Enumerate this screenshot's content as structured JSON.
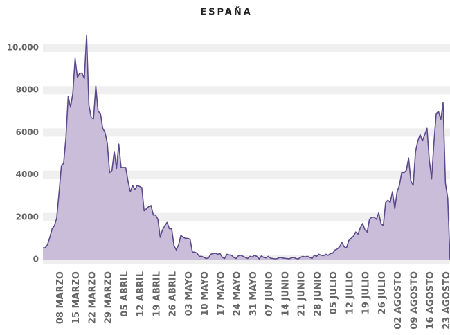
{
  "chart_data": {
    "type": "area",
    "title": "ESPAÑA",
    "categories": [
      null,
      null,
      null,
      null,
      null,
      null,
      null,
      "08 MARZO",
      null,
      null,
      null,
      null,
      null,
      null,
      "15 MARZO",
      null,
      null,
      null,
      null,
      null,
      null,
      "22 MARZO",
      null,
      null,
      null,
      null,
      null,
      null,
      "29 MARZO",
      null,
      null,
      null,
      null,
      null,
      null,
      "05 ABRIL",
      null,
      null,
      null,
      null,
      null,
      null,
      "12 ABRIL",
      null,
      null,
      null,
      null,
      null,
      null,
      "19 ABRIL",
      null,
      null,
      null,
      null,
      null,
      null,
      "26 ABRIL",
      null,
      null,
      null,
      null,
      null,
      null,
      "03 MAYO",
      null,
      null,
      null,
      null,
      null,
      null,
      "10 MAYO",
      null,
      null,
      null,
      null,
      null,
      null,
      "17 MAYO",
      null,
      null,
      null,
      null,
      null,
      null,
      "24 MAYO",
      null,
      null,
      null,
      null,
      null,
      null,
      "31 MAYO",
      null,
      null,
      null,
      null,
      null,
      null,
      "07 JUNIO",
      null,
      null,
      null,
      null,
      null,
      null,
      "14 JUNIO",
      null,
      null,
      null,
      null,
      null,
      null,
      "21 JUNIO",
      null,
      null,
      null,
      null,
      null,
      null,
      "28 JUNIO",
      null,
      null,
      null,
      null,
      null,
      null,
      "05 JULIO",
      null,
      null,
      null,
      null,
      null,
      null,
      "12 JULIO",
      null,
      null,
      null,
      null,
      null,
      null,
      "19 JULIO",
      null,
      null,
      null,
      null,
      null,
      null,
      "26 JULIO",
      null,
      null,
      null,
      null,
      null,
      null,
      "02 AGOSTO",
      null,
      null,
      null,
      null,
      null,
      null,
      "09 AGOSTO",
      null,
      null,
      null,
      null,
      null,
      null,
      "16 AGOSTO",
      null,
      null,
      null,
      null,
      null,
      null,
      "23 AGOSTO",
      null,
      null
    ],
    "values": [
      550,
      560,
      700,
      1050,
      1450,
      1600,
      1950,
      3150,
      4400,
      4550,
      5750,
      7700,
      7200,
      7850,
      9500,
      8600,
      8800,
      8800,
      8550,
      10600,
      7300,
      6700,
      6650,
      8200,
      7000,
      6900,
      6200,
      6000,
      5500,
      4100,
      4200,
      5100,
      4300,
      5450,
      4350,
      4350,
      4350,
      3700,
      3200,
      3500,
      3300,
      3500,
      3450,
      3400,
      2300,
      2400,
      2500,
      2550,
      2100,
      2100,
      1900,
      1050,
      1400,
      1600,
      1750,
      1450,
      1450,
      650,
      450,
      700,
      1150,
      1050,
      1000,
      1000,
      950,
      350,
      350,
      300,
      150,
      150,
      100,
      50,
      80,
      250,
      280,
      300,
      250,
      280,
      100,
      50,
      250,
      220,
      200,
      100,
      50,
      180,
      200,
      150,
      100,
      50,
      150,
      120,
      200,
      150,
      30,
      170,
      100,
      80,
      150,
      60,
      50,
      30,
      50,
      100,
      80,
      60,
      50,
      30,
      80,
      100,
      50,
      30,
      100,
      150,
      120,
      150,
      100,
      50,
      200,
      150,
      250,
      200,
      180,
      250,
      200,
      280,
      300,
      450,
      500,
      600,
      800,
      600,
      550,
      900,
      1000,
      1100,
      1300,
      1200,
      1500,
      1700,
      1400,
      1300,
      1900,
      2000,
      2000,
      1900,
      2200,
      1700,
      1600,
      2700,
      2800,
      2700,
      3200,
      2400,
      3200,
      3500,
      4100,
      4100,
      4200,
      4800,
      3700,
      3500,
      5100,
      5600,
      5900,
      5600,
      5900,
      6200,
      4700,
      3800,
      5500,
      6900,
      7000,
      6600,
      7400,
      3600,
      2900,
      0
    ],
    "color": "#5b4a8b",
    "fill": "#c9bdd9",
    "ylim": [
      0,
      10000
    ],
    "yticks": [
      0,
      2000,
      4000,
      6000,
      8000,
      {
        "value": 10000,
        "label": "10.000"
      }
    ],
    "grid": true
  }
}
